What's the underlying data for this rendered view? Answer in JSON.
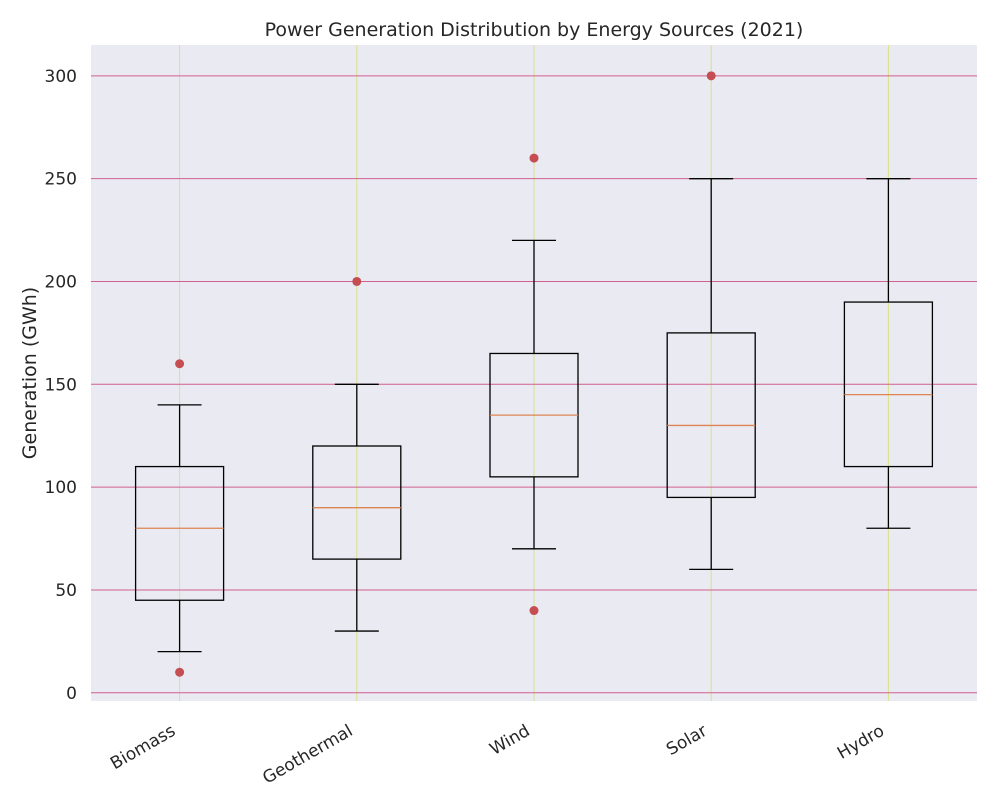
{
  "chart_data": {
    "type": "box",
    "title": "Power Generation Distribution by Energy Sources (2021)",
    "xlabel": "",
    "ylabel": "Generation (GWh)",
    "ylim": [
      -4,
      315
    ],
    "yticks": [
      0,
      50,
      100,
      150,
      200,
      250,
      300
    ],
    "grid": true,
    "categories": [
      "Biomass",
      "Geothermal",
      "Wind",
      "Solar",
      "Hydro"
    ],
    "boxes": [
      {
        "category": "Biomass",
        "whisker_low": 20,
        "q1": 45,
        "median": 80,
        "q3": 110,
        "whisker_high": 140,
        "outliers": [
          10,
          160
        ]
      },
      {
        "category": "Geothermal",
        "whisker_low": 30,
        "q1": 65,
        "median": 90,
        "q3": 120,
        "whisker_high": 150,
        "outliers": [
          200
        ]
      },
      {
        "category": "Wind",
        "whisker_low": 70,
        "q1": 105,
        "median": 135,
        "q3": 165,
        "whisker_high": 220,
        "outliers": [
          40,
          260
        ]
      },
      {
        "category": "Solar",
        "whisker_low": 60,
        "q1": 95,
        "median": 130,
        "q3": 175,
        "whisker_high": 250,
        "outliers": [
          300
        ]
      },
      {
        "category": "Hydro",
        "whisker_low": 80,
        "q1": 110,
        "median": 145,
        "q3": 190,
        "whisker_high": 250,
        "outliers": []
      }
    ],
    "colors": {
      "background": "#eaeaf2",
      "hgrid": "#d0608f",
      "vgrid": "#dbe08a",
      "box": "#000000",
      "median": "#dd8452",
      "outlier": "#c44e52"
    }
  }
}
